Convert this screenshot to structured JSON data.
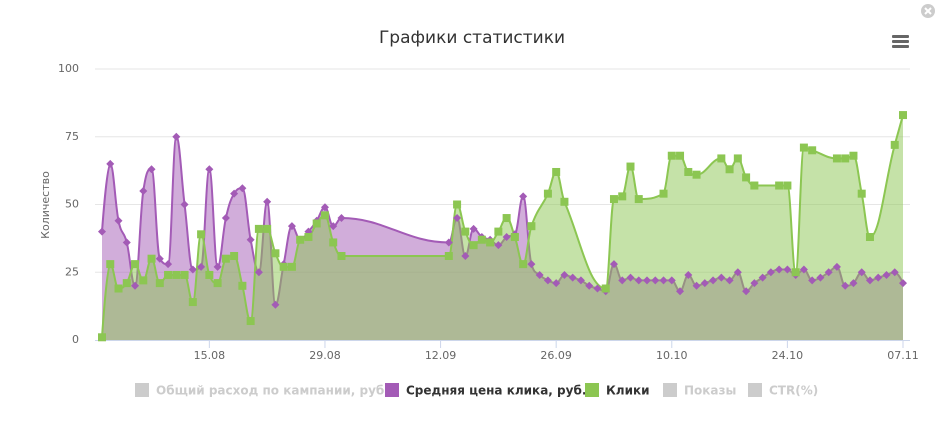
{
  "chart_data": {
    "type": "areaspline",
    "title": "Графики статистики",
    "y_label": "Количество",
    "x": [
      "02.08",
      "03.08",
      "04.08",
      "05.08",
      "06.08",
      "07.08",
      "08.08",
      "09.08",
      "10.08",
      "11.08",
      "12.08",
      "13.08",
      "14.08",
      "15.08",
      "16.08",
      "17.08",
      "18.08",
      "19.08",
      "20.08",
      "21.08",
      "22.08",
      "23.08",
      "24.08",
      "25.08",
      "26.08",
      "27.08",
      "28.08",
      "29.08",
      "30.08",
      "31.08",
      "13.09",
      "14.09",
      "15.09",
      "16.09",
      "17.09",
      "18.09",
      "19.09",
      "20.09",
      "21.09",
      "22.09",
      "23.09",
      "24.09",
      "25.09",
      "26.09",
      "27.09",
      "28.09",
      "29.09",
      "30.09",
      "01.10",
      "02.10",
      "03.10",
      "04.10",
      "05.10",
      "06.10",
      "07.10",
      "08.10",
      "09.10",
      "10.10",
      "11.10",
      "12.10",
      "13.10",
      "14.10",
      "15.10",
      "16.10",
      "17.10",
      "18.10",
      "19.10",
      "20.10",
      "21.10",
      "22.10",
      "23.10",
      "24.10",
      "25.10",
      "26.10",
      "27.10",
      "28.10",
      "29.10",
      "30.10",
      "31.10",
      "01.11",
      "02.11",
      "03.11",
      "04.11",
      "05.11",
      "06.11",
      "07.11"
    ],
    "xlim": [
      "02.08",
      "07.11"
    ],
    "xticks": [
      "15.08",
      "29.08",
      "12.09",
      "26.09",
      "10.10",
      "24.10",
      "07.11"
    ],
    "ylim": [
      0,
      100
    ],
    "yticks": [
      0,
      25,
      50,
      75,
      100
    ],
    "grid": true,
    "connect_nulls": true,
    "series": [
      {
        "name": "Общий расход по кампании, руб.",
        "visible": false
      },
      {
        "name": "Средняя цена клика, руб.",
        "color": "#a35bb6",
        "marker": "diamond",
        "values": [
          40,
          65,
          44,
          36,
          20,
          55,
          63,
          30,
          28,
          75,
          50,
          26,
          27,
          63,
          27,
          45,
          54,
          56,
          37,
          25,
          51,
          13,
          28,
          42,
          37,
          40,
          44,
          49,
          42,
          45,
          36,
          45,
          31,
          41,
          38,
          37,
          35,
          38,
          39,
          53,
          28,
          24,
          22,
          21,
          24,
          23,
          22,
          20,
          19,
          18,
          28,
          22,
          23,
          22,
          22,
          22,
          22,
          22,
          18,
          24,
          20,
          21,
          22,
          23,
          22,
          25,
          18,
          21,
          23,
          25,
          26,
          26,
          24,
          26,
          22,
          23,
          25,
          27,
          20,
          21,
          25,
          22,
          23,
          24,
          25,
          21
        ]
      },
      {
        "name": "Клики",
        "color": "#8cc652",
        "marker": "square",
        "values": [
          1,
          28,
          19,
          21,
          28,
          22,
          30,
          21,
          24,
          24,
          24,
          14,
          39,
          24,
          21,
          30,
          31,
          20,
          7,
          41,
          41,
          32,
          27,
          27,
          37,
          38,
          43,
          46,
          36,
          31,
          31,
          50,
          40,
          35,
          37,
          36,
          40,
          45,
          38,
          28,
          42,
          null,
          54,
          62,
          51,
          null,
          null,
          null,
          null,
          19,
          52,
          53,
          64,
          52,
          null,
          null,
          54,
          68,
          68,
          62,
          61,
          null,
          null,
          67,
          63,
          67,
          60,
          57,
          null,
          null,
          57,
          57,
          25,
          71,
          70,
          null,
          null,
          67,
          67,
          68,
          54,
          38,
          null,
          null,
          72,
          83
        ]
      },
      {
        "name": "Показы",
        "visible": false
      },
      {
        "name": "CTR(%)",
        "visible": false
      }
    ]
  }
}
